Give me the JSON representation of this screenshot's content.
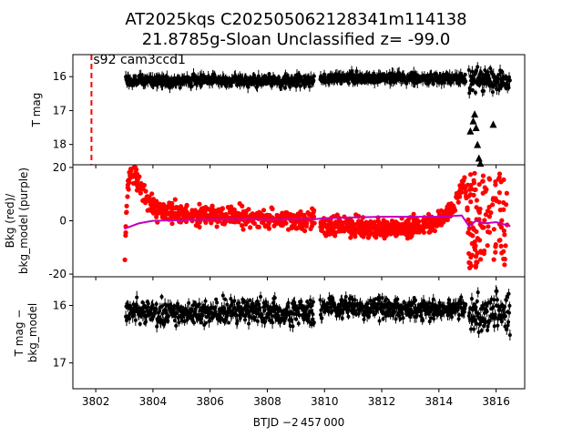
{
  "title": {
    "line1": "AT2025kqs  C202505062128341m114138",
    "line2": "21.8785g-Sloan Unclassified z= -99.0"
  },
  "annotation": "s92 cam3ccd1",
  "xlabel": "BTJD −2 457 000",
  "colors": {
    "flux": "#000000",
    "bkg": "#ff0000",
    "bkg_model": "#bf00bf",
    "marker_line": "#ff0000"
  },
  "chart_data": [
    {
      "type": "scatter",
      "panel": "top",
      "ylabel": "T mag",
      "y_inverted": true,
      "xlim": [
        3801.2,
        3817.0
      ],
      "ylim": [
        18.6,
        15.35
      ],
      "xticks": [
        3802,
        3804,
        3806,
        3808,
        3810,
        3812,
        3814,
        3816
      ],
      "yticks": [
        16,
        17,
        18
      ],
      "marker_line_x": 3801.85,
      "segments": [
        {
          "x_start": 3803.05,
          "x_end": 3809.65,
          "y_center": 16.12,
          "y_spread": 0.17
        },
        {
          "x_start": 3809.85,
          "x_end": 3814.95,
          "y_center": 16.05,
          "y_spread": 0.14
        },
        {
          "x_start": 3815.05,
          "x_end": 3816.5,
          "y_center": 16.1,
          "y_spread": 0.3
        }
      ],
      "upper_limits": [
        {
          "x": 3815.1,
          "y": 17.6
        },
        {
          "x": 3815.2,
          "y": 17.3
        },
        {
          "x": 3815.25,
          "y": 17.1
        },
        {
          "x": 3815.3,
          "y": 17.5
        },
        {
          "x": 3815.35,
          "y": 18.0
        },
        {
          "x": 3815.4,
          "y": 18.4
        },
        {
          "x": 3815.45,
          "y": 18.55
        },
        {
          "x": 3815.9,
          "y": 17.4
        }
      ]
    },
    {
      "type": "scatter",
      "panel": "middle",
      "ylabel": "Bkg (red)/\nbkg_model (purple)",
      "xlim": [
        3801.2,
        3817.0
      ],
      "ylim": [
        -21,
        21
      ],
      "yticks": [
        -20,
        0,
        20
      ],
      "series": [
        {
          "name": "Bkg",
          "color": "#ff0000",
          "points": [
            [
              3803.0,
              -19
            ],
            [
              3803.1,
              10
            ],
            [
              3803.2,
              18
            ],
            [
              3803.4,
              17
            ],
            [
              3803.6,
              12
            ],
            [
              3803.8,
              8
            ],
            [
              3804.0,
              5
            ],
            [
              3804.5,
              3
            ],
            [
              3805,
              2.5
            ],
            [
              3806,
              2
            ],
            [
              3807,
              1.5
            ],
            [
              3808,
              1
            ],
            [
              3809,
              0.5
            ],
            [
              3809.6,
              0
            ],
            [
              3810,
              -2
            ],
            [
              3811,
              -2.5
            ],
            [
              3812,
              -3
            ],
            [
              3813,
              -3
            ],
            [
              3813.5,
              -2
            ],
            [
              3814,
              0
            ],
            [
              3814.5,
              5
            ],
            [
              3814.9,
              15
            ],
            [
              3815.1,
              -10
            ],
            [
              3815.5,
              10
            ],
            [
              3816,
              -15
            ],
            [
              3816.4,
              18
            ]
          ]
        },
        {
          "name": "bkg_model",
          "color": "#bf00bf",
          "points": [
            [
              3803.0,
              -3
            ],
            [
              3803.5,
              -1
            ],
            [
              3804,
              0
            ],
            [
              3806,
              0.5
            ],
            [
              3808,
              0.5
            ],
            [
              3809.6,
              0.5
            ],
            [
              3810,
              1
            ],
            [
              3812,
              1.5
            ],
            [
              3814,
              1.5
            ],
            [
              3814.8,
              2
            ],
            [
              3815.05,
              -2
            ],
            [
              3815.3,
              0
            ],
            [
              3815.6,
              -1
            ],
            [
              3816,
              -0.5
            ],
            [
              3816.5,
              -2
            ]
          ]
        }
      ]
    },
    {
      "type": "scatter",
      "panel": "bottom",
      "ylabel": "T mag −\nbkg_model",
      "y_inverted": true,
      "xlim": [
        3801.2,
        3817.0
      ],
      "ylim": [
        17.45,
        15.5
      ],
      "xticks": [
        3802,
        3804,
        3806,
        3808,
        3810,
        3812,
        3814,
        3816
      ],
      "yticks": [
        16,
        17
      ],
      "segments": [
        {
          "x_start": 3803.05,
          "x_end": 3809.65,
          "y_center": 16.12,
          "y_spread": 0.2
        },
        {
          "x_start": 3809.85,
          "x_end": 3814.95,
          "y_center": 16.05,
          "y_spread": 0.17
        },
        {
          "x_start": 3815.05,
          "x_end": 3816.5,
          "y_center": 16.15,
          "y_spread": 0.35
        }
      ]
    }
  ]
}
